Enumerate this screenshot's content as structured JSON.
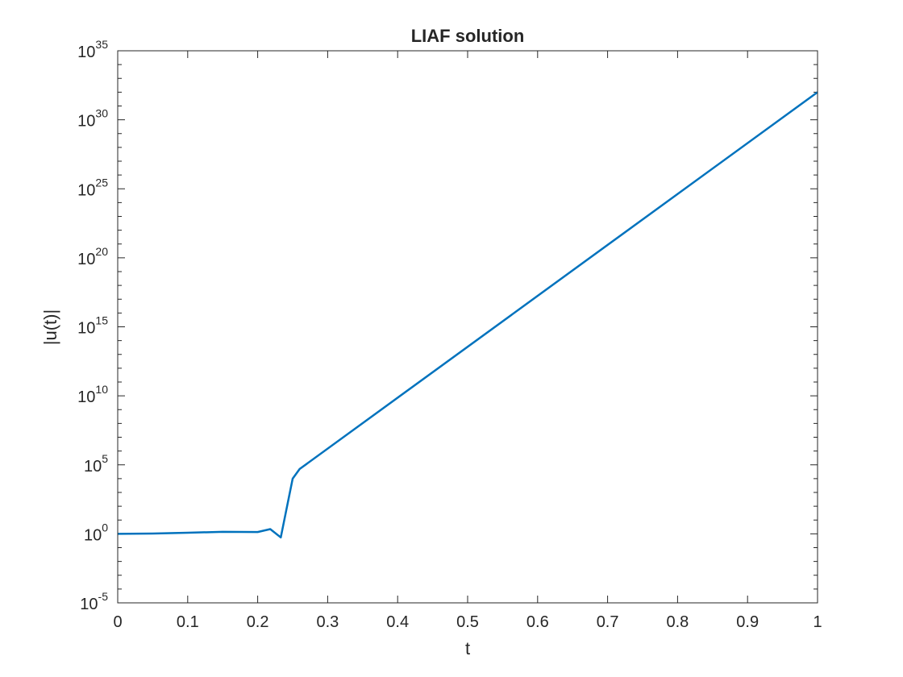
{
  "chart_data": {
    "type": "line",
    "title": "LIAF solution",
    "xlabel": "t",
    "ylabel": "|u(t)|",
    "xlim": [
      0,
      1
    ],
    "ylim": [
      1e-05,
      1e+35
    ],
    "y_scale": "log",
    "grid": false,
    "x_ticks": [
      0,
      0.1,
      0.2,
      0.3,
      0.4,
      0.5,
      0.6,
      0.7,
      0.8,
      0.9,
      1
    ],
    "x_tick_labels": [
      "0",
      "0.1",
      "0.2",
      "0.3",
      "0.4",
      "0.5",
      "0.6",
      "0.7",
      "0.8",
      "0.9",
      "1"
    ],
    "y_ticks": [
      {
        "base": "10",
        "exp": "-5",
        "value": 1e-05
      },
      {
        "base": "10",
        "exp": "0",
        "value": 1
      },
      {
        "base": "10",
        "exp": "5",
        "value": 100000.0
      },
      {
        "base": "10",
        "exp": "10",
        "value": 10000000000.0
      },
      {
        "base": "10",
        "exp": "15",
        "value": 1000000000000000.0
      },
      {
        "base": "10",
        "exp": "20",
        "value": 1e+20
      },
      {
        "base": "10",
        "exp": "25",
        "value": 1e+25
      },
      {
        "base": "10",
        "exp": "30",
        "value": 1e+30
      },
      {
        "base": "10",
        "exp": "35",
        "value": 1e+35
      }
    ],
    "series": [
      {
        "color": "#0072bd",
        "x": [
          0,
          0.05,
          0.1,
          0.15,
          0.2,
          0.218,
          0.233,
          0.25,
          0.26,
          1.0
        ],
        "y": [
          1,
          1.05,
          1.2,
          1.4,
          1.35,
          2.2,
          0.55,
          10000,
          50000,
          1e+32
        ]
      }
    ]
  }
}
